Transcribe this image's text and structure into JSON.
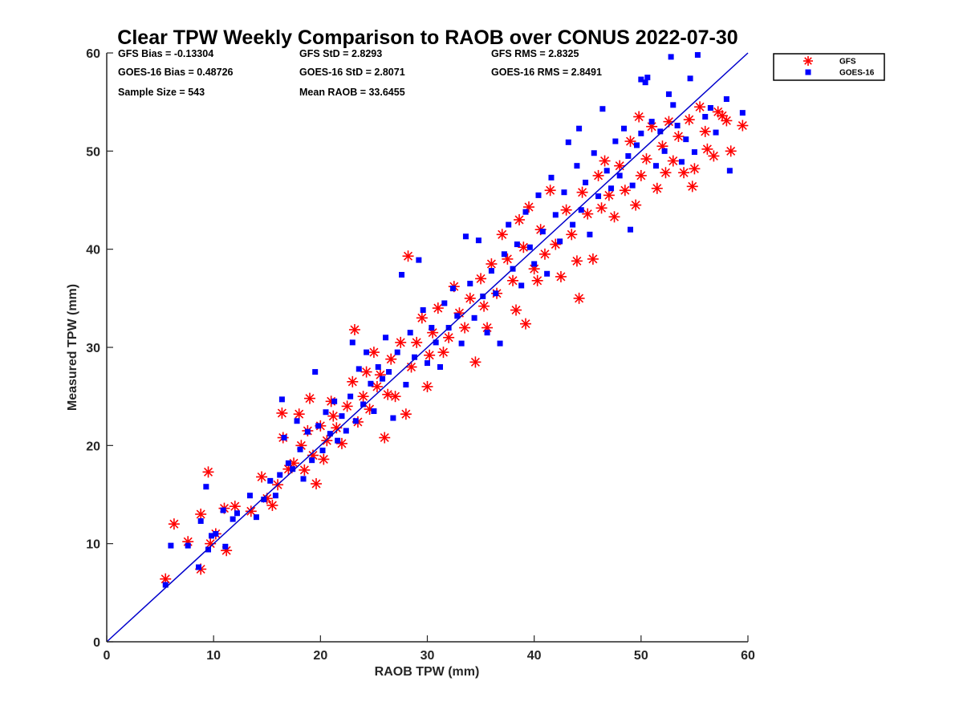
{
  "chart_data": {
    "type": "scatter",
    "title": "Clear TPW Weekly Comparison to RAOB over CONUS 2022-07-30",
    "xlabel": "RAOB TPW (mm)",
    "ylabel": "Measured TPW (mm)",
    "xlim": [
      0,
      60
    ],
    "ylim": [
      0,
      60
    ],
    "xticks": [
      "0",
      "10",
      "20",
      "30",
      "40",
      "50",
      "60"
    ],
    "yticks": [
      "0",
      "10",
      "20",
      "30",
      "40",
      "50",
      "60"
    ],
    "grid": false,
    "legend_position": "outside-top-right",
    "stats": [
      [
        "GFS Bias = -0.13304",
        "GFS StD = 2.8293",
        "GFS RMS = 2.8325"
      ],
      [
        "GOES-16 Bias = 0.48726",
        "GOES-16 StD = 2.8071",
        "GOES-16 RMS = 2.8491"
      ],
      [
        "Sample Size = 543",
        "Mean RAOB = 33.6455"
      ]
    ],
    "reference_line": {
      "x": [
        0,
        60
      ],
      "y": [
        0,
        60
      ],
      "color": "#0000cc"
    },
    "series": [
      {
        "name": "GFS",
        "marker": "asterisk",
        "color": "#ff0000",
        "points": [
          [
            5.5,
            6.4
          ],
          [
            6.3,
            12.0
          ],
          [
            7.6,
            10.2
          ],
          [
            8.8,
            13.0
          ],
          [
            8.8,
            7.4
          ],
          [
            9.5,
            17.3
          ],
          [
            9.7,
            10.0
          ],
          [
            10.2,
            11.0
          ],
          [
            11.0,
            13.6
          ],
          [
            11.2,
            9.3
          ],
          [
            12.0,
            13.8
          ],
          [
            13.5,
            13.3
          ],
          [
            14.5,
            16.8
          ],
          [
            15.0,
            14.6
          ],
          [
            15.5,
            13.9
          ],
          [
            16.0,
            16.0
          ],
          [
            16.4,
            23.3
          ],
          [
            16.5,
            20.8
          ],
          [
            17.0,
            17.6
          ],
          [
            17.5,
            18.2
          ],
          [
            18.0,
            23.2
          ],
          [
            18.2,
            20.0
          ],
          [
            18.5,
            17.5
          ],
          [
            18.8,
            21.5
          ],
          [
            19.0,
            24.8
          ],
          [
            19.3,
            19.0
          ],
          [
            19.6,
            16.1
          ],
          [
            20.0,
            22.0
          ],
          [
            20.3,
            18.6
          ],
          [
            20.6,
            20.5
          ],
          [
            21.0,
            24.5
          ],
          [
            21.2,
            23.0
          ],
          [
            21.5,
            21.8
          ],
          [
            22.0,
            20.2
          ],
          [
            22.5,
            24.0
          ],
          [
            23.0,
            26.5
          ],
          [
            23.2,
            31.8
          ],
          [
            23.5,
            22.4
          ],
          [
            24.0,
            25.0
          ],
          [
            24.3,
            27.5
          ],
          [
            24.6,
            23.7
          ],
          [
            25.0,
            29.5
          ],
          [
            25.3,
            26.0
          ],
          [
            25.6,
            27.2
          ],
          [
            26.0,
            20.8
          ],
          [
            26.3,
            25.2
          ],
          [
            26.6,
            28.8
          ],
          [
            27.0,
            25.0
          ],
          [
            27.5,
            30.5
          ],
          [
            28.0,
            23.2
          ],
          [
            28.2,
            39.3
          ],
          [
            28.5,
            28.0
          ],
          [
            29.0,
            30.5
          ],
          [
            29.5,
            33.0
          ],
          [
            30.0,
            26.0
          ],
          [
            30.2,
            29.2
          ],
          [
            30.5,
            31.5
          ],
          [
            31.0,
            34.0
          ],
          [
            31.5,
            29.5
          ],
          [
            32.0,
            31.0
          ],
          [
            32.5,
            36.2
          ],
          [
            33.0,
            33.5
          ],
          [
            33.5,
            32.0
          ],
          [
            34.0,
            35.0
          ],
          [
            34.5,
            28.5
          ],
          [
            35.0,
            37.0
          ],
          [
            35.3,
            34.2
          ],
          [
            35.6,
            32.0
          ],
          [
            36.0,
            38.5
          ],
          [
            36.5,
            35.5
          ],
          [
            37.0,
            41.5
          ],
          [
            37.5,
            39.0
          ],
          [
            38.0,
            36.8
          ],
          [
            38.3,
            33.8
          ],
          [
            38.6,
            43.0
          ],
          [
            39.0,
            40.2
          ],
          [
            39.2,
            32.4
          ],
          [
            39.5,
            44.3
          ],
          [
            40.0,
            38.0
          ],
          [
            40.3,
            36.8
          ],
          [
            40.6,
            42.0
          ],
          [
            41.0,
            39.5
          ],
          [
            41.5,
            46.0
          ],
          [
            42.0,
            40.5
          ],
          [
            42.5,
            37.2
          ],
          [
            43.0,
            44.0
          ],
          [
            43.5,
            41.5
          ],
          [
            44.0,
            38.8
          ],
          [
            44.2,
            35.0
          ],
          [
            44.5,
            45.8
          ],
          [
            45.0,
            43.6
          ],
          [
            45.5,
            39.0
          ],
          [
            46.0,
            47.5
          ],
          [
            46.3,
            44.2
          ],
          [
            46.6,
            49.0
          ],
          [
            47.0,
            45.5
          ],
          [
            47.5,
            43.3
          ],
          [
            48.0,
            48.5
          ],
          [
            48.5,
            46.0
          ],
          [
            49.0,
            51.0
          ],
          [
            49.5,
            44.5
          ],
          [
            49.8,
            53.5
          ],
          [
            50.0,
            47.5
          ],
          [
            50.5,
            49.2
          ],
          [
            51.0,
            52.5
          ],
          [
            51.5,
            46.2
          ],
          [
            52.0,
            50.5
          ],
          [
            52.3,
            47.8
          ],
          [
            52.6,
            53.0
          ],
          [
            53.0,
            49.0
          ],
          [
            53.5,
            51.5
          ],
          [
            54.0,
            47.8
          ],
          [
            54.5,
            53.2
          ],
          [
            54.8,
            46.4
          ],
          [
            55.0,
            48.2
          ],
          [
            55.5,
            54.5
          ],
          [
            56.0,
            52.0
          ],
          [
            56.2,
            50.2
          ],
          [
            56.8,
            49.5
          ],
          [
            57.2,
            54.0
          ],
          [
            57.6,
            53.6
          ],
          [
            58.0,
            53.1
          ],
          [
            58.4,
            50.0
          ],
          [
            59.5,
            52.6
          ]
        ]
      },
      {
        "name": "GOES-16",
        "marker": "square",
        "color": "#0000ff",
        "points": [
          [
            5.5,
            5.8
          ],
          [
            6.0,
            9.8
          ],
          [
            7.6,
            9.8
          ],
          [
            8.6,
            7.6
          ],
          [
            8.8,
            12.3
          ],
          [
            9.3,
            15.8
          ],
          [
            9.5,
            9.4
          ],
          [
            9.8,
            10.8
          ],
          [
            10.2,
            11.0
          ],
          [
            10.9,
            13.4
          ],
          [
            11.1,
            9.7
          ],
          [
            11.8,
            12.5
          ],
          [
            12.2,
            13.1
          ],
          [
            13.4,
            14.9
          ],
          [
            14.0,
            12.7
          ],
          [
            14.7,
            14.5
          ],
          [
            15.3,
            16.4
          ],
          [
            15.8,
            14.9
          ],
          [
            16.2,
            17.0
          ],
          [
            16.4,
            24.7
          ],
          [
            16.6,
            20.8
          ],
          [
            17.0,
            18.2
          ],
          [
            17.4,
            17.6
          ],
          [
            17.8,
            22.5
          ],
          [
            18.1,
            19.6
          ],
          [
            18.4,
            16.6
          ],
          [
            18.8,
            21.4
          ],
          [
            19.2,
            18.5
          ],
          [
            19.5,
            27.5
          ],
          [
            19.8,
            22.0
          ],
          [
            20.2,
            19.5
          ],
          [
            20.5,
            23.4
          ],
          [
            20.9,
            21.2
          ],
          [
            21.3,
            24.5
          ],
          [
            21.6,
            20.5
          ],
          [
            22.0,
            23.0
          ],
          [
            22.4,
            21.5
          ],
          [
            22.8,
            25.0
          ],
          [
            23.0,
            30.5
          ],
          [
            23.3,
            22.5
          ],
          [
            23.6,
            27.8
          ],
          [
            24.0,
            24.2
          ],
          [
            24.3,
            29.5
          ],
          [
            24.7,
            26.3
          ],
          [
            25.0,
            23.5
          ],
          [
            25.4,
            28.0
          ],
          [
            25.8,
            26.8
          ],
          [
            26.1,
            31.0
          ],
          [
            26.4,
            27.5
          ],
          [
            26.8,
            22.8
          ],
          [
            27.2,
            29.5
          ],
          [
            27.6,
            37.4
          ],
          [
            28.0,
            26.2
          ],
          [
            28.4,
            31.5
          ],
          [
            28.8,
            29.0
          ],
          [
            29.2,
            38.9
          ],
          [
            29.6,
            33.8
          ],
          [
            30.0,
            28.4
          ],
          [
            30.4,
            32.0
          ],
          [
            30.8,
            30.5
          ],
          [
            31.2,
            28.0
          ],
          [
            31.6,
            34.5
          ],
          [
            32.0,
            32.0
          ],
          [
            32.4,
            36.0
          ],
          [
            32.8,
            33.2
          ],
          [
            33.2,
            30.4
          ],
          [
            33.6,
            41.3
          ],
          [
            34.0,
            36.5
          ],
          [
            34.4,
            33.0
          ],
          [
            34.8,
            40.9
          ],
          [
            35.2,
            35.2
          ],
          [
            35.6,
            31.5
          ],
          [
            36.0,
            37.8
          ],
          [
            36.4,
            35.5
          ],
          [
            36.8,
            30.4
          ],
          [
            37.2,
            39.5
          ],
          [
            37.6,
            42.5
          ],
          [
            38.0,
            38.0
          ],
          [
            38.4,
            40.5
          ],
          [
            38.8,
            36.3
          ],
          [
            39.2,
            43.8
          ],
          [
            39.6,
            40.2
          ],
          [
            40.0,
            38.5
          ],
          [
            40.4,
            45.5
          ],
          [
            40.8,
            41.8
          ],
          [
            41.2,
            37.5
          ],
          [
            41.6,
            47.3
          ],
          [
            42.0,
            43.5
          ],
          [
            42.4,
            40.8
          ],
          [
            42.8,
            45.8
          ],
          [
            43.2,
            50.9
          ],
          [
            43.6,
            42.5
          ],
          [
            44.0,
            48.5
          ],
          [
            44.2,
            52.3
          ],
          [
            44.4,
            44.0
          ],
          [
            44.8,
            46.8
          ],
          [
            45.2,
            41.5
          ],
          [
            45.6,
            49.8
          ],
          [
            46.0,
            45.4
          ],
          [
            46.4,
            54.3
          ],
          [
            46.8,
            48.0
          ],
          [
            47.2,
            46.2
          ],
          [
            47.6,
            51.0
          ],
          [
            48.0,
            47.5
          ],
          [
            48.4,
            52.3
          ],
          [
            48.8,
            49.5
          ],
          [
            49.0,
            42.0
          ],
          [
            49.2,
            46.5
          ],
          [
            49.6,
            50.6
          ],
          [
            50.0,
            51.8
          ],
          [
            50.0,
            57.3
          ],
          [
            50.4,
            57.0
          ],
          [
            50.6,
            57.5
          ],
          [
            51.0,
            53.0
          ],
          [
            51.4,
            48.5
          ],
          [
            51.8,
            52.0
          ],
          [
            52.2,
            50.0
          ],
          [
            52.6,
            55.8
          ],
          [
            52.8,
            59.6
          ],
          [
            53.0,
            54.7
          ],
          [
            53.4,
            52.6
          ],
          [
            53.8,
            48.9
          ],
          [
            54.2,
            51.2
          ],
          [
            54.6,
            57.4
          ],
          [
            55.0,
            49.9
          ],
          [
            55.3,
            59.8
          ],
          [
            56.0,
            53.5
          ],
          [
            56.5,
            54.4
          ],
          [
            57.0,
            51.9
          ],
          [
            58.0,
            55.3
          ],
          [
            58.3,
            48.0
          ],
          [
            59.5,
            53.9
          ]
        ]
      }
    ]
  }
}
